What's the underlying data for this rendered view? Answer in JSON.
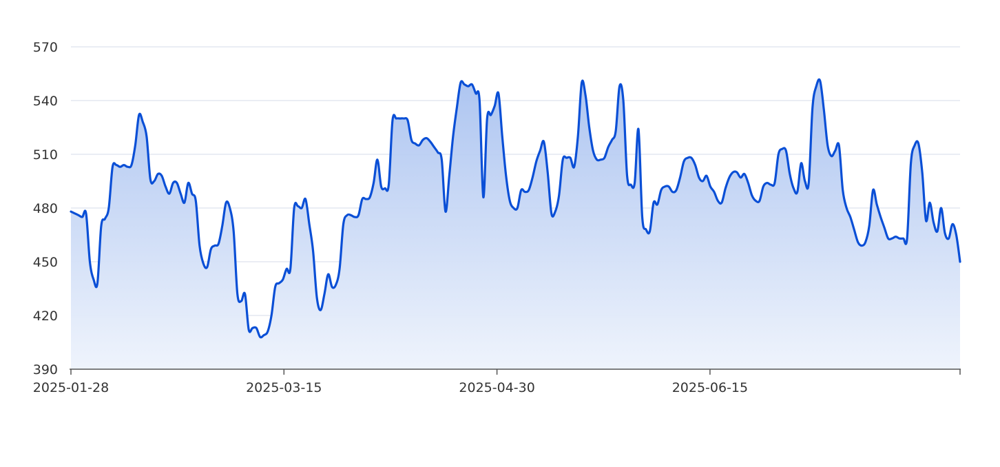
{
  "chart_data": {
    "type": "area",
    "title": "",
    "xlabel": "",
    "ylabel": "",
    "ylim": [
      390,
      570
    ],
    "yticks": [
      390,
      420,
      450,
      480,
      510,
      540,
      570
    ],
    "xticks": [
      "2025-01-28",
      "2025-03-15",
      "2025-04-30",
      "2025-06-15"
    ],
    "grid": true,
    "legend": "none",
    "colors": {
      "line": "#0a4fd6",
      "fill_top": "#a9c2f0",
      "fill_bottom": "#eef3fc"
    },
    "x_start": "2025-01-28",
    "x_end": "2025-08-08",
    "series": [
      {
        "values": [
          478,
          477,
          476,
          475,
          477,
          450,
          440,
          438,
          470,
          474,
          480,
          503,
          504,
          503,
          504,
          503,
          504,
          515,
          532,
          528,
          520,
          496,
          495,
          499,
          498,
          492,
          488,
          494,
          494,
          488,
          483,
          494,
          488,
          484,
          459,
          449,
          447,
          457,
          459,
          460,
          470,
          483,
          480,
          467,
          432,
          428,
          432,
          412,
          413,
          413,
          408,
          409,
          411,
          420,
          436,
          438,
          440,
          446,
          446,
          480,
          481,
          480,
          485,
          471,
          456,
          430,
          423,
          432,
          443,
          436,
          437,
          446,
          471,
          476,
          476,
          475,
          476,
          485,
          485,
          486,
          494,
          507,
          492,
          491,
          493,
          529,
          530,
          530,
          530,
          529,
          518,
          516,
          515,
          518,
          519,
          517,
          514,
          511,
          507,
          478,
          498,
          520,
          536,
          550,
          549,
          548,
          549,
          544,
          540,
          486,
          530,
          532,
          537,
          544,
          520,
          498,
          484,
          480,
          480,
          490,
          489,
          490,
          497,
          506,
          512,
          517,
          500,
          477,
          478,
          487,
          507,
          508,
          508,
          503,
          520,
          550,
          543,
          525,
          512,
          507,
          507,
          508,
          514,
          518,
          523,
          548,
          540,
          498,
          493,
          494,
          524,
          475,
          468,
          467,
          483,
          482,
          490,
          492,
          492,
          489,
          490,
          497,
          506,
          508,
          508,
          504,
          497,
          495,
          498,
          492,
          489,
          484,
          483,
          491,
          497,
          500,
          500,
          497,
          499,
          494,
          487,
          484,
          484,
          492,
          494,
          493,
          494,
          510,
          513,
          512,
          499,
          491,
          489,
          505,
          495,
          494,
          536,
          548,
          551,
          535,
          515,
          509,
          512,
          515,
          490,
          480,
          475,
          468,
          461,
          459,
          461,
          470,
          490,
          482,
          475,
          469,
          463,
          463,
          464,
          463,
          463,
          463,
          505,
          515,
          516,
          500,
          473,
          483,
          472,
          467,
          480,
          466,
          463,
          471,
          465,
          450
        ]
      }
    ]
  }
}
